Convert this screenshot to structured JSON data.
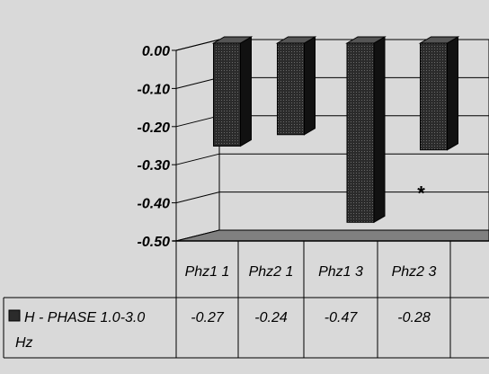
{
  "chart_data": {
    "type": "bar",
    "categories": [
      "Phz1 1",
      "Phz2 1",
      "Phz1 3",
      "Phz2 3"
    ],
    "series": [
      {
        "name": "H - PHASE 1.0-3.0 Hz",
        "values": [
          -0.27,
          -0.24,
          -0.47,
          -0.28
        ],
        "color": "#2b2b2b"
      }
    ],
    "value_labels": [
      "-0.27",
      "-0.24",
      "-0.47",
      "-0.28"
    ],
    "ylim": [
      -0.5,
      0.0
    ],
    "yticks": [
      0.0,
      -0.1,
      -0.2,
      -0.3,
      -0.4,
      -0.5
    ],
    "ytick_labels": [
      "0.00",
      "-0.10",
      "-0.20",
      "-0.30",
      "-0.40",
      "-0.50"
    ],
    "annotations": [
      {
        "text": "*",
        "category": "Phz2 3",
        "y": -0.36
      }
    ],
    "legend": "data-table",
    "grid": true,
    "three_d": true,
    "colors": {
      "background": "#d9d9d9",
      "floor": "#808080",
      "bar_front": "#2b2b2b"
    }
  }
}
